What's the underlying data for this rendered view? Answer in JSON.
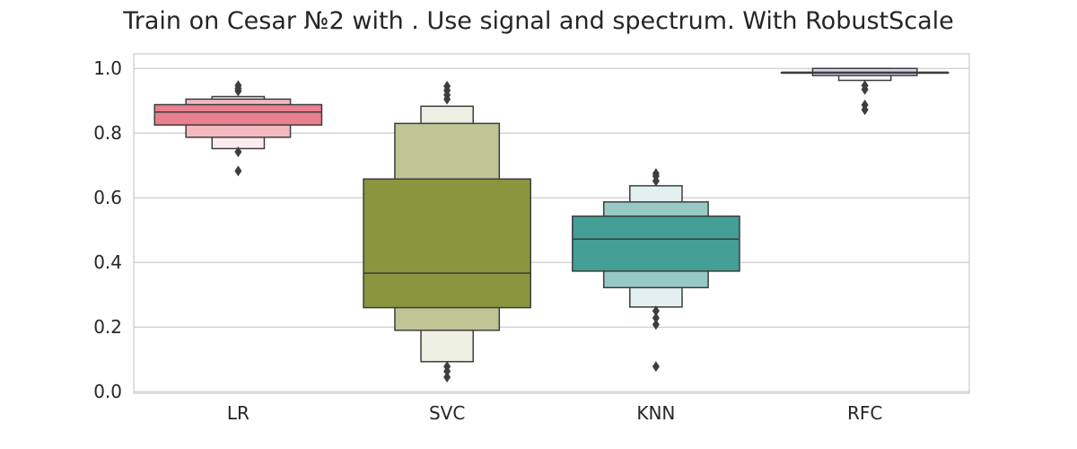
{
  "chart_data": {
    "type": "boxen",
    "title": "Train on Cesar №2 with . Use signal and spectrum. With RobustScale",
    "xlabel": "",
    "ylabel": "",
    "ylim": [
      -0.005,
      1.045
    ],
    "yticks": [
      0.0,
      0.2,
      0.4,
      0.6,
      0.8,
      1.0
    ],
    "ytick_labels": [
      "0.0",
      "0.2",
      "0.4",
      "0.6",
      "0.8",
      "1.0"
    ],
    "grid": true,
    "categories": [
      "LR",
      "SVC",
      "KNN",
      "RFC"
    ],
    "series": [
      {
        "category": "LR",
        "color": "#e8808f",
        "median": 0.865,
        "boxes": [
          {
            "low": 0.825,
            "high": 0.888
          },
          {
            "low": 0.787,
            "high": 0.905
          },
          {
            "low": 0.752,
            "high": 0.913
          }
        ],
        "outliers": [
          0.938,
          0.947,
          0.93,
          0.742,
          0.683
        ]
      },
      {
        "category": "SVC",
        "color": "#8a963e",
        "median": 0.367,
        "boxes": [
          {
            "low": 0.26,
            "high": 0.658
          },
          {
            "low": 0.19,
            "high": 0.83
          },
          {
            "low": 0.093,
            "high": 0.883
          }
        ],
        "outliers": [
          0.945,
          0.932,
          0.918,
          0.905,
          0.078,
          0.063,
          0.045
        ]
      },
      {
        "category": "KNN",
        "color": "#439e96",
        "median": 0.472,
        "boxes": [
          {
            "low": 0.373,
            "high": 0.543
          },
          {
            "low": 0.322,
            "high": 0.587
          },
          {
            "low": 0.262,
            "high": 0.637
          }
        ],
        "outliers": [
          0.675,
          0.667,
          0.652,
          0.25,
          0.228,
          0.208,
          0.078
        ]
      },
      {
        "category": "RFC",
        "color": "#b9b2db",
        "median": 0.987,
        "boxes": [
          {
            "low": 0.987,
            "high": 0.987
          },
          {
            "low": 0.978,
            "high": 1.0
          },
          {
            "low": 0.963,
            "high": 1.0
          }
        ],
        "outliers": [
          0.947,
          0.935,
          0.887,
          0.872
        ]
      }
    ]
  }
}
